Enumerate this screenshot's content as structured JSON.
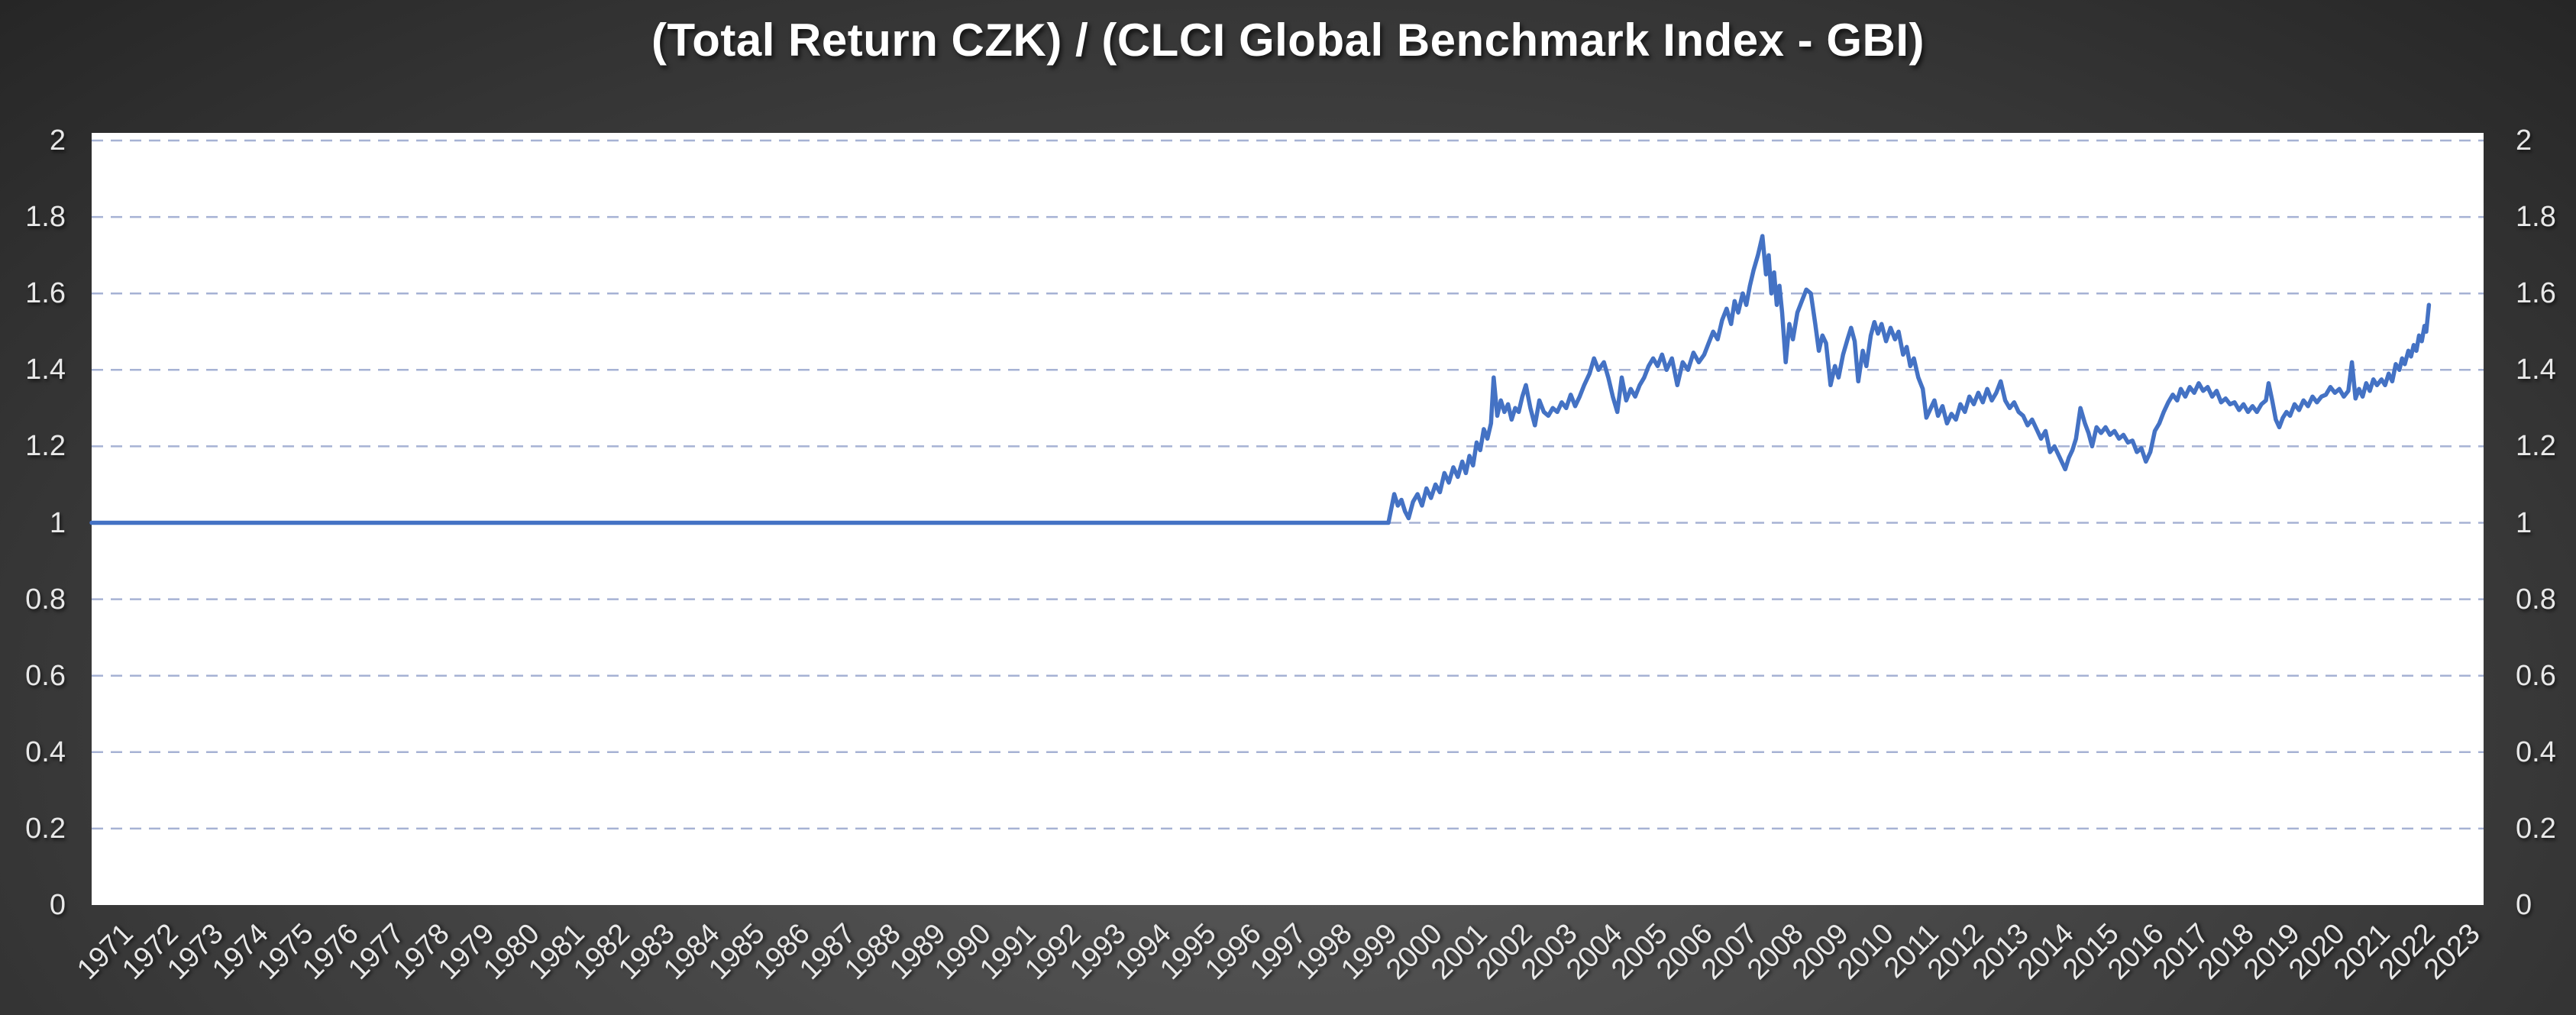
{
  "chart_data": {
    "type": "line",
    "title": "(Total Return CZK) / (CLCI Global Benchmark Index - GBI)",
    "x_axis": {
      "labels": [
        "1971",
        "1972",
        "1973",
        "1974",
        "1975",
        "1976",
        "1977",
        "1978",
        "1979",
        "1980",
        "1981",
        "1982",
        "1983",
        "1984",
        "1985",
        "1986",
        "1987",
        "1988",
        "1989",
        "1990",
        "1991",
        "1992",
        "1993",
        "1994",
        "1995",
        "1996",
        "1997",
        "1998",
        "1999",
        "2000",
        "2001",
        "2002",
        "2003",
        "2004",
        "2005",
        "2006",
        "2007",
        "2008",
        "2009",
        "2010",
        "2011",
        "2012",
        "2013",
        "2014",
        "2015",
        "2016",
        "2017",
        "2018",
        "2019",
        "2020",
        "2021",
        "2022",
        "2023"
      ],
      "range": [
        1971,
        2024.4
      ],
      "label_rotation_deg": -45
    },
    "y_axis": {
      "tick_labels": [
        "2",
        "1.8",
        "1.6",
        "1.4",
        "1.2",
        "1",
        "0.8",
        "0.6",
        "0.4",
        "0.2",
        "0"
      ],
      "min": 0,
      "max": 2,
      "step": 0.2,
      "shown_on": "both"
    },
    "grid": {
      "horizontal": "dashed",
      "vertical": "none"
    },
    "legend": "none",
    "plot_background": "#ffffff",
    "colors": {
      "series_line": "#4472c4",
      "gridline": "#a6b2d4",
      "axis_label": "#e8e8e8",
      "title": "#ffffff",
      "background_center": "#5b5b5b",
      "background_edge": "#262626"
    },
    "series": [
      {
        "points": [
          [
            1971.0,
            1.0
          ],
          [
            1999.95,
            1.0
          ],
          [
            2000.08,
            1.075
          ],
          [
            2000.16,
            1.045
          ],
          [
            2000.24,
            1.06
          ],
          [
            2000.32,
            1.03
          ],
          [
            2000.4,
            1.012
          ],
          [
            2000.5,
            1.055
          ],
          [
            2000.6,
            1.075
          ],
          [
            2000.7,
            1.045
          ],
          [
            2000.8,
            1.09
          ],
          [
            2000.9,
            1.065
          ],
          [
            2001.0,
            1.1
          ],
          [
            2001.1,
            1.08
          ],
          [
            2001.2,
            1.13
          ],
          [
            2001.3,
            1.105
          ],
          [
            2001.4,
            1.145
          ],
          [
            2001.5,
            1.12
          ],
          [
            2001.6,
            1.16
          ],
          [
            2001.68,
            1.13
          ],
          [
            2001.76,
            1.175
          ],
          [
            2001.84,
            1.15
          ],
          [
            2001.92,
            1.21
          ],
          [
            2002.0,
            1.19
          ],
          [
            2002.08,
            1.245
          ],
          [
            2002.16,
            1.22
          ],
          [
            2002.24,
            1.26
          ],
          [
            2002.3,
            1.38
          ],
          [
            2002.38,
            1.28
          ],
          [
            2002.46,
            1.32
          ],
          [
            2002.54,
            1.29
          ],
          [
            2002.62,
            1.31
          ],
          [
            2002.7,
            1.27
          ],
          [
            2002.78,
            1.3
          ],
          [
            2002.86,
            1.29
          ],
          [
            2002.94,
            1.33
          ],
          [
            2003.02,
            1.36
          ],
          [
            2003.12,
            1.3
          ],
          [
            2003.22,
            1.255
          ],
          [
            2003.32,
            1.32
          ],
          [
            2003.42,
            1.29
          ],
          [
            2003.52,
            1.28
          ],
          [
            2003.62,
            1.3
          ],
          [
            2003.72,
            1.29
          ],
          [
            2003.82,
            1.315
          ],
          [
            2003.92,
            1.3
          ],
          [
            2004.02,
            1.335
          ],
          [
            2004.12,
            1.305
          ],
          [
            2004.22,
            1.33
          ],
          [
            2004.32,
            1.36
          ],
          [
            2004.44,
            1.39
          ],
          [
            2004.54,
            1.43
          ],
          [
            2004.64,
            1.4
          ],
          [
            2004.76,
            1.42
          ],
          [
            2004.86,
            1.38
          ],
          [
            2004.96,
            1.33
          ],
          [
            2005.06,
            1.29
          ],
          [
            2005.16,
            1.38
          ],
          [
            2005.26,
            1.32
          ],
          [
            2005.36,
            1.35
          ],
          [
            2005.46,
            1.33
          ],
          [
            2005.56,
            1.36
          ],
          [
            2005.66,
            1.38
          ],
          [
            2005.76,
            1.41
          ],
          [
            2005.86,
            1.43
          ],
          [
            2005.96,
            1.41
          ],
          [
            2006.06,
            1.44
          ],
          [
            2006.16,
            1.4
          ],
          [
            2006.28,
            1.43
          ],
          [
            2006.4,
            1.36
          ],
          [
            2006.52,
            1.42
          ],
          [
            2006.64,
            1.4
          ],
          [
            2006.76,
            1.445
          ],
          [
            2006.88,
            1.42
          ],
          [
            2007.0,
            1.44
          ],
          [
            2007.1,
            1.47
          ],
          [
            2007.2,
            1.5
          ],
          [
            2007.3,
            1.48
          ],
          [
            2007.4,
            1.53
          ],
          [
            2007.5,
            1.56
          ],
          [
            2007.6,
            1.52
          ],
          [
            2007.68,
            1.58
          ],
          [
            2007.76,
            1.55
          ],
          [
            2007.86,
            1.6
          ],
          [
            2007.94,
            1.57
          ],
          [
            2008.02,
            1.62
          ],
          [
            2008.1,
            1.66
          ],
          [
            2008.2,
            1.7
          ],
          [
            2008.3,
            1.75
          ],
          [
            2008.38,
            1.65
          ],
          [
            2008.44,
            1.7
          ],
          [
            2008.5,
            1.6
          ],
          [
            2008.56,
            1.655
          ],
          [
            2008.62,
            1.57
          ],
          [
            2008.68,
            1.62
          ],
          [
            2008.74,
            1.55
          ],
          [
            2008.82,
            1.42
          ],
          [
            2008.9,
            1.52
          ],
          [
            2008.98,
            1.48
          ],
          [
            2009.08,
            1.55
          ],
          [
            2009.18,
            1.58
          ],
          [
            2009.28,
            1.61
          ],
          [
            2009.38,
            1.6
          ],
          [
            2009.48,
            1.52
          ],
          [
            2009.56,
            1.45
          ],
          [
            2009.64,
            1.49
          ],
          [
            2009.72,
            1.47
          ],
          [
            2009.82,
            1.36
          ],
          [
            2009.92,
            1.41
          ],
          [
            2010.0,
            1.38
          ],
          [
            2010.1,
            1.44
          ],
          [
            2010.2,
            1.48
          ],
          [
            2010.28,
            1.51
          ],
          [
            2010.36,
            1.475
          ],
          [
            2010.44,
            1.37
          ],
          [
            2010.54,
            1.45
          ],
          [
            2010.62,
            1.41
          ],
          [
            2010.72,
            1.49
          ],
          [
            2010.8,
            1.525
          ],
          [
            2010.88,
            1.495
          ],
          [
            2010.96,
            1.52
          ],
          [
            2011.06,
            1.475
          ],
          [
            2011.16,
            1.51
          ],
          [
            2011.26,
            1.48
          ],
          [
            2011.34,
            1.5
          ],
          [
            2011.44,
            1.44
          ],
          [
            2011.52,
            1.46
          ],
          [
            2011.6,
            1.41
          ],
          [
            2011.68,
            1.43
          ],
          [
            2011.78,
            1.38
          ],
          [
            2011.88,
            1.35
          ],
          [
            2011.96,
            1.275
          ],
          [
            2012.06,
            1.3
          ],
          [
            2012.14,
            1.32
          ],
          [
            2012.22,
            1.28
          ],
          [
            2012.32,
            1.305
          ],
          [
            2012.42,
            1.26
          ],
          [
            2012.52,
            1.285
          ],
          [
            2012.62,
            1.27
          ],
          [
            2012.72,
            1.31
          ],
          [
            2012.82,
            1.29
          ],
          [
            2012.92,
            1.33
          ],
          [
            2013.02,
            1.31
          ],
          [
            2013.12,
            1.34
          ],
          [
            2013.22,
            1.315
          ],
          [
            2013.32,
            1.35
          ],
          [
            2013.42,
            1.32
          ],
          [
            2013.52,
            1.34
          ],
          [
            2013.62,
            1.37
          ],
          [
            2013.72,
            1.32
          ],
          [
            2013.82,
            1.3
          ],
          [
            2013.92,
            1.315
          ],
          [
            2014.02,
            1.29
          ],
          [
            2014.12,
            1.28
          ],
          [
            2014.22,
            1.255
          ],
          [
            2014.32,
            1.27
          ],
          [
            2014.42,
            1.245
          ],
          [
            2014.52,
            1.22
          ],
          [
            2014.62,
            1.24
          ],
          [
            2014.72,
            1.185
          ],
          [
            2014.82,
            1.2
          ],
          [
            2014.92,
            1.175
          ],
          [
            2015.0,
            1.155
          ],
          [
            2015.06,
            1.14
          ],
          [
            2015.14,
            1.17
          ],
          [
            2015.22,
            1.19
          ],
          [
            2015.3,
            1.22
          ],
          [
            2015.4,
            1.3
          ],
          [
            2015.5,
            1.26
          ],
          [
            2015.58,
            1.235
          ],
          [
            2015.66,
            1.2
          ],
          [
            2015.76,
            1.25
          ],
          [
            2015.86,
            1.235
          ],
          [
            2015.96,
            1.25
          ],
          [
            2016.06,
            1.23
          ],
          [
            2016.16,
            1.24
          ],
          [
            2016.26,
            1.22
          ],
          [
            2016.36,
            1.23
          ],
          [
            2016.46,
            1.21
          ],
          [
            2016.56,
            1.215
          ],
          [
            2016.66,
            1.185
          ],
          [
            2016.76,
            1.195
          ],
          [
            2016.86,
            1.16
          ],
          [
            2016.96,
            1.185
          ],
          [
            2017.06,
            1.24
          ],
          [
            2017.16,
            1.26
          ],
          [
            2017.26,
            1.29
          ],
          [
            2017.36,
            1.315
          ],
          [
            2017.46,
            1.335
          ],
          [
            2017.56,
            1.32
          ],
          [
            2017.64,
            1.35
          ],
          [
            2017.74,
            1.33
          ],
          [
            2017.84,
            1.355
          ],
          [
            2017.94,
            1.34
          ],
          [
            2018.04,
            1.365
          ],
          [
            2018.14,
            1.345
          ],
          [
            2018.24,
            1.355
          ],
          [
            2018.34,
            1.33
          ],
          [
            2018.44,
            1.345
          ],
          [
            2018.54,
            1.315
          ],
          [
            2018.64,
            1.325
          ],
          [
            2018.74,
            1.31
          ],
          [
            2018.84,
            1.315
          ],
          [
            2018.94,
            1.295
          ],
          [
            2019.04,
            1.31
          ],
          [
            2019.14,
            1.29
          ],
          [
            2019.24,
            1.305
          ],
          [
            2019.34,
            1.29
          ],
          [
            2019.44,
            1.31
          ],
          [
            2019.54,
            1.32
          ],
          [
            2019.6,
            1.365
          ],
          [
            2019.68,
            1.32
          ],
          [
            2019.76,
            1.27
          ],
          [
            2019.84,
            1.25
          ],
          [
            2019.92,
            1.275
          ],
          [
            2020.0,
            1.29
          ],
          [
            2020.08,
            1.28
          ],
          [
            2020.18,
            1.31
          ],
          [
            2020.28,
            1.295
          ],
          [
            2020.38,
            1.32
          ],
          [
            2020.48,
            1.305
          ],
          [
            2020.58,
            1.33
          ],
          [
            2020.68,
            1.315
          ],
          [
            2020.78,
            1.33
          ],
          [
            2020.88,
            1.335
          ],
          [
            2020.98,
            1.355
          ],
          [
            2021.08,
            1.34
          ],
          [
            2021.18,
            1.35
          ],
          [
            2021.28,
            1.33
          ],
          [
            2021.38,
            1.345
          ],
          [
            2021.46,
            1.42
          ],
          [
            2021.54,
            1.325
          ],
          [
            2021.62,
            1.35
          ],
          [
            2021.7,
            1.33
          ],
          [
            2021.78,
            1.365
          ],
          [
            2021.86,
            1.345
          ],
          [
            2021.94,
            1.375
          ],
          [
            2022.02,
            1.36
          ],
          [
            2022.12,
            1.375
          ],
          [
            2022.2,
            1.36
          ],
          [
            2022.28,
            1.39
          ],
          [
            2022.36,
            1.37
          ],
          [
            2022.44,
            1.415
          ],
          [
            2022.52,
            1.4
          ],
          [
            2022.58,
            1.43
          ],
          [
            2022.64,
            1.415
          ],
          [
            2022.72,
            1.45
          ],
          [
            2022.78,
            1.435
          ],
          [
            2022.84,
            1.465
          ],
          [
            2022.9,
            1.45
          ],
          [
            2022.96,
            1.49
          ],
          [
            2023.02,
            1.475
          ],
          [
            2023.08,
            1.515
          ],
          [
            2023.12,
            1.5
          ],
          [
            2023.18,
            1.57
          ]
        ]
      }
    ]
  }
}
